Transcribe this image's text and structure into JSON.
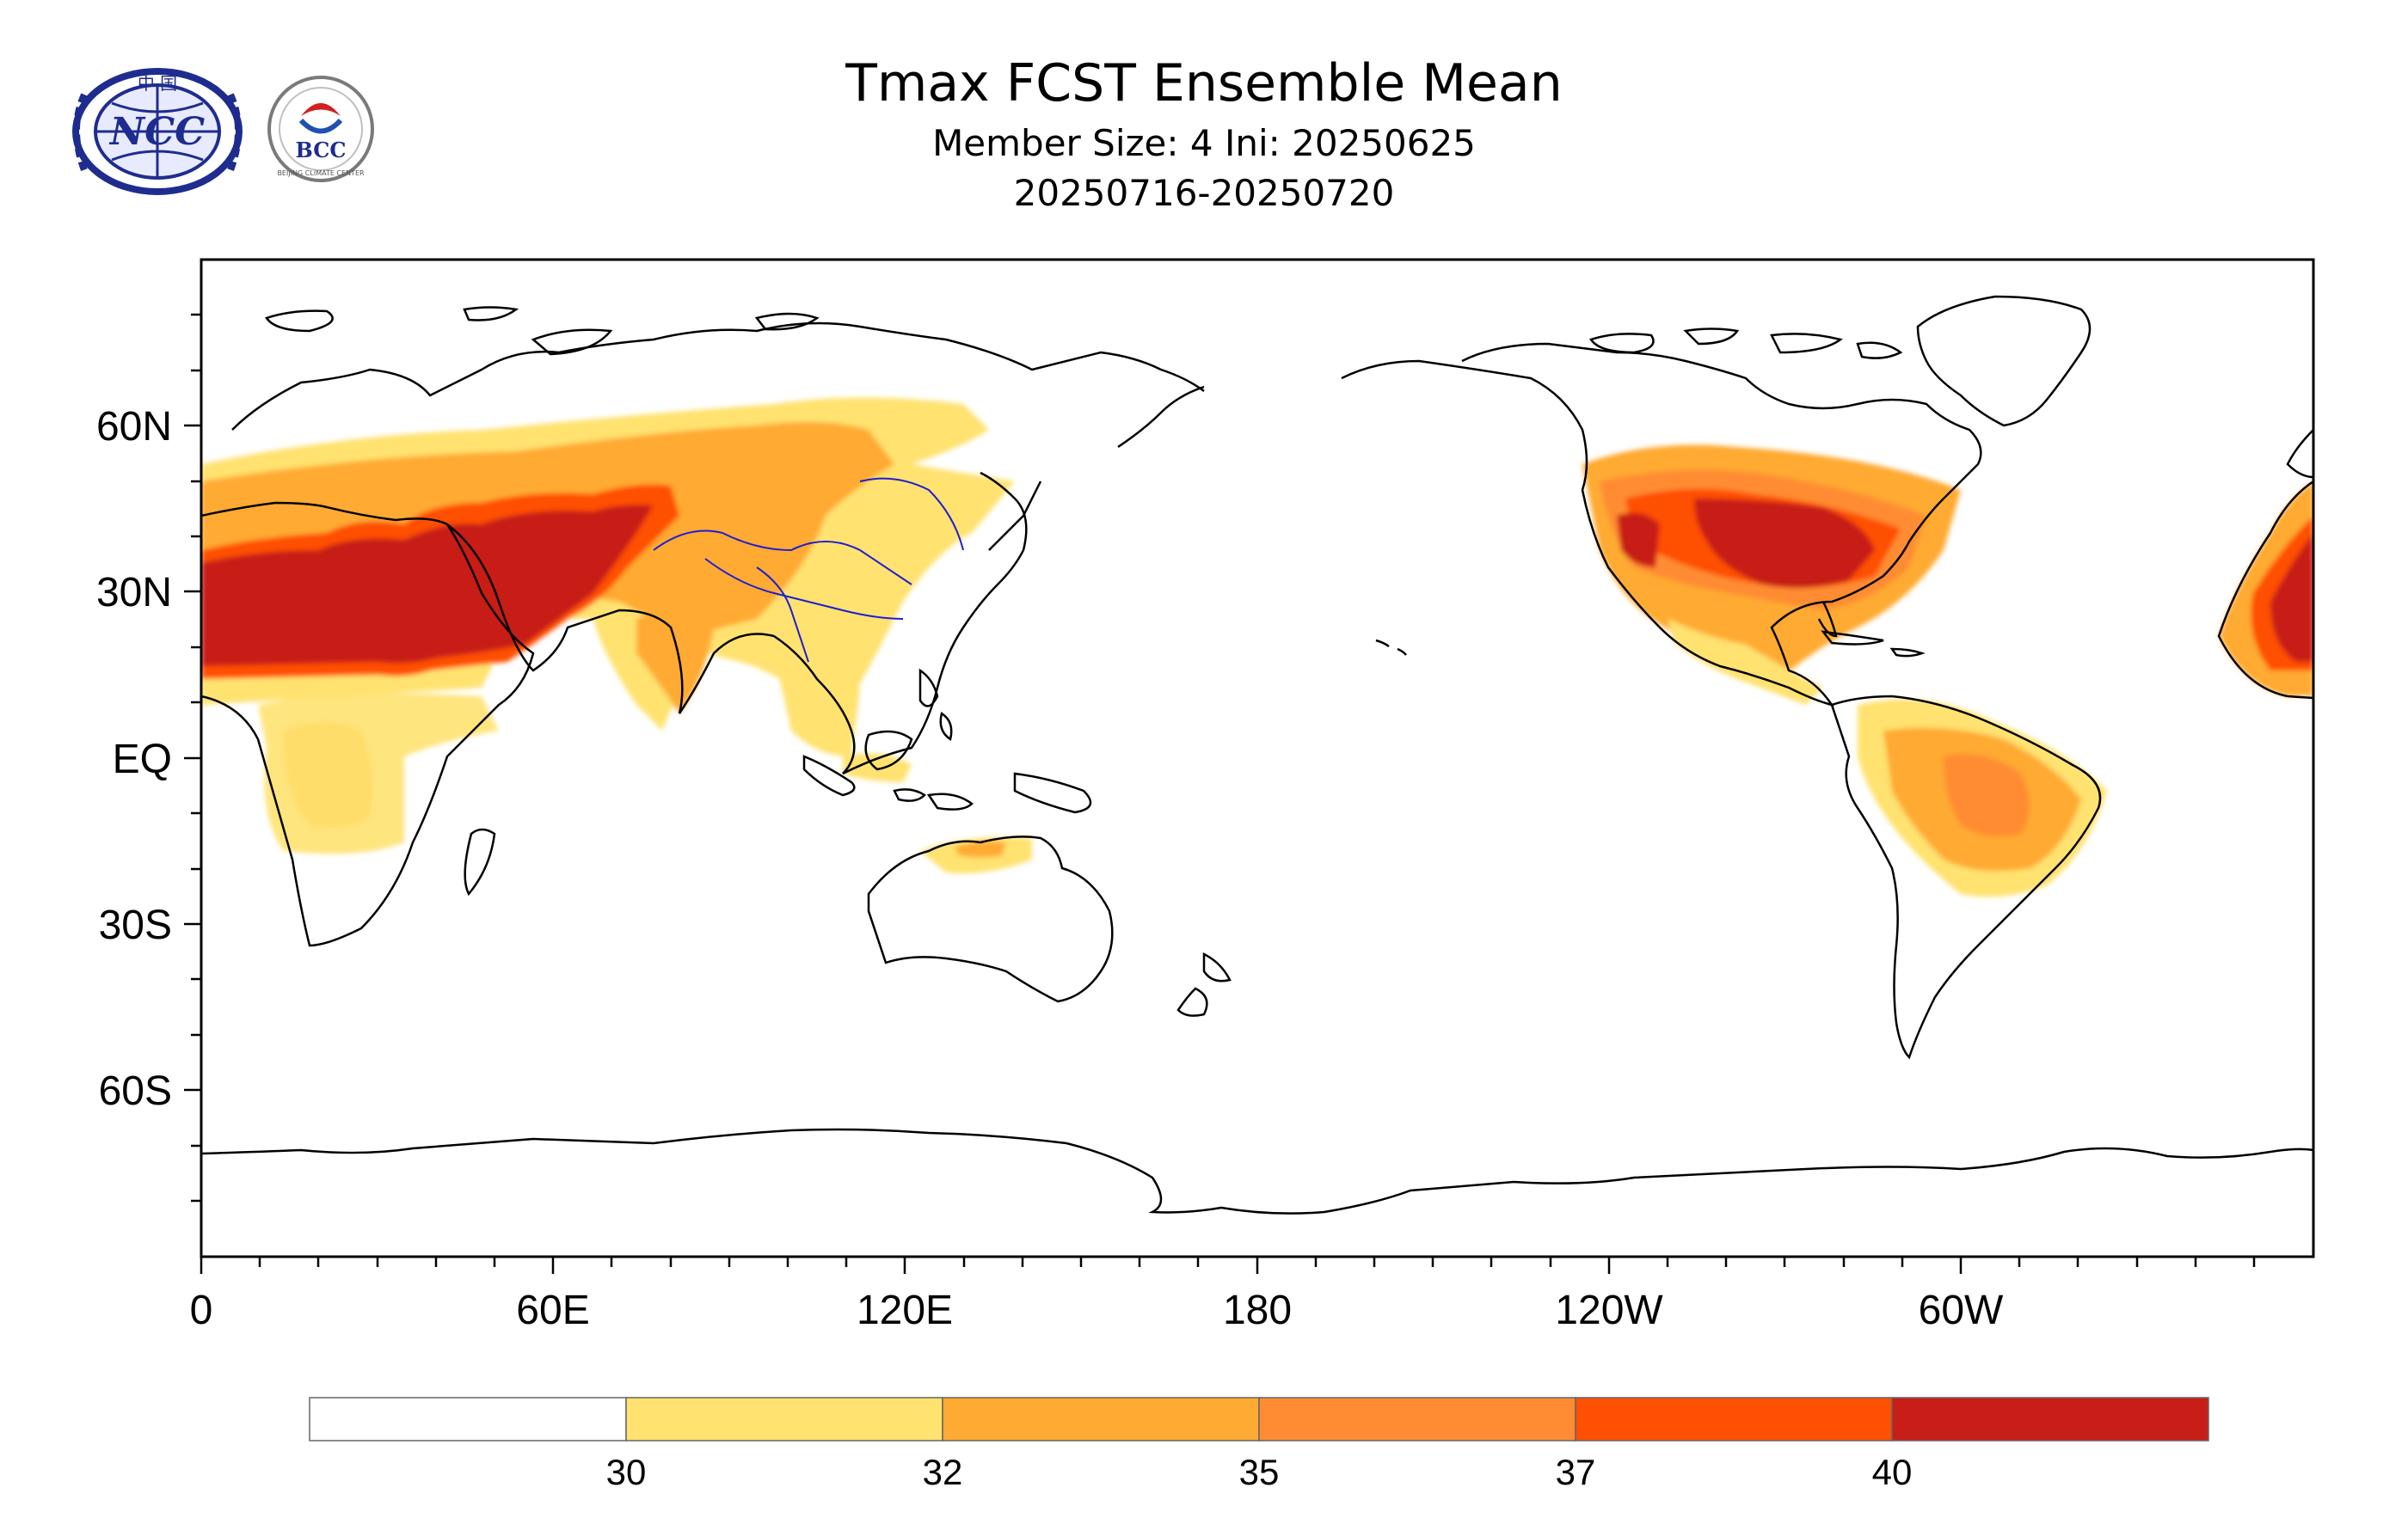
{
  "header": {
    "title": "Tmax FCST Ensemble Mean",
    "member_line": "Member Size: 4  Ini: 20250625",
    "date_range": "20250716-20250720"
  },
  "logos": {
    "left_text": "NCC",
    "left_caption": "中 国",
    "right_text": "BCC",
    "right_caption": "BEIJING CLIMATE CENTER"
  },
  "map": {
    "projection": "cylindrical-equidistant, central longitude 180",
    "lon_range": [
      0,
      360
    ],
    "lat_range": [
      -90,
      90
    ],
    "lat_labels": [
      "60N",
      "30N",
      "EQ",
      "30S",
      "60S"
    ],
    "lon_labels": [
      "0",
      "60E",
      "120E",
      "180",
      "120W",
      "60W"
    ]
  },
  "colorbar": {
    "labels": [
      "30",
      "32",
      "35",
      "37",
      "40"
    ],
    "colors": [
      "#ffffff",
      "#ffe270",
      "#ffaa33",
      "#ff8c32",
      "#ff5003",
      "#c81e18"
    ]
  },
  "colors": {
    "land_outline": "#000000",
    "river": "#1e1ed2",
    "frame": "#000000"
  }
}
